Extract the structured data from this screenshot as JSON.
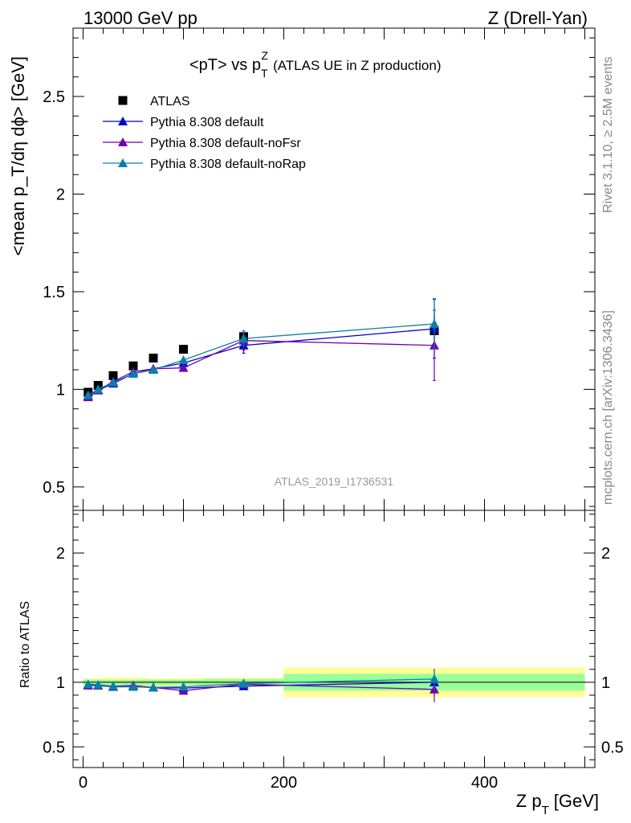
{
  "header": {
    "left": "13000 GeV pp",
    "right": "Z (Drell-Yan)"
  },
  "side_labels": {
    "rivet": "Rivet 3.1.10, ≥ 2.5M events",
    "arxiv": "mcplots.cern.ch [arXiv:1306.3436]"
  },
  "chart_data": [
    {
      "type": "line",
      "title": "<pT> vs p_T^Z (ATLAS UE in Z production)",
      "title_main": "<pT> vs p",
      "title_sup": "Z",
      "title_sub": "T",
      "title_suffix": "(ATLAS UE in Z production)",
      "ylabel": "<mean p_T/dη dϕ> [GeV]",
      "watermark": "ATLAS_2019_I1736531",
      "xlim": [
        -10,
        510
      ],
      "ylim": [
        0.38,
        2.85
      ],
      "yticks": [
        0.5,
        1,
        1.5,
        2,
        2.5
      ],
      "ytick_labels": [
        "0.5",
        "1",
        "1.5",
        "2",
        "2.5"
      ],
      "legend_position": "top-left",
      "series": [
        {
          "name": "ATLAS",
          "kind": "data",
          "color": "#000000",
          "x": [
            5,
            15,
            30,
            50,
            70,
            100,
            160,
            350
          ],
          "y": [
            0.985,
            1.02,
            1.07,
            1.12,
            1.16,
            1.205,
            1.27,
            1.3
          ],
          "err": [
            0.01,
            0.01,
            0.01,
            0.012,
            0.015,
            0.015,
            0.03,
            0.08
          ]
        },
        {
          "name": "Pythia 8.308 default",
          "kind": "mc",
          "color": "#0000cc",
          "x": [
            5,
            15,
            30,
            50,
            70,
            100,
            160,
            350
          ],
          "y": [
            0.965,
            0.995,
            1.03,
            1.08,
            1.105,
            1.135,
            1.225,
            1.31
          ],
          "err": [
            0.01,
            0.01,
            0.01,
            0.015,
            0.02,
            0.02,
            0.04,
            0.15
          ]
        },
        {
          "name": "Pythia 8.308 default-noFsr",
          "kind": "mc",
          "color": "#7000b0",
          "x": [
            5,
            15,
            30,
            50,
            70,
            100,
            160,
            350
          ],
          "y": [
            0.96,
            0.995,
            1.04,
            1.09,
            1.105,
            1.11,
            1.25,
            1.225
          ],
          "err": [
            0.01,
            0.01,
            0.01,
            0.015,
            0.02,
            0.02,
            0.05,
            0.18
          ]
        },
        {
          "name": "Pythia 8.308 default-noRap",
          "kind": "mc",
          "color": "#0a80a8",
          "x": [
            5,
            15,
            30,
            50,
            70,
            100,
            160,
            350
          ],
          "y": [
            0.97,
            1.0,
            1.035,
            1.08,
            1.1,
            1.15,
            1.26,
            1.335
          ],
          "err": [
            0.01,
            0.01,
            0.01,
            0.015,
            0.02,
            0.02,
            0.04,
            0.13
          ]
        }
      ]
    },
    {
      "type": "line",
      "ylabel": "Ratio to ATLAS",
      "xlabel": "Z p_T [GeV]",
      "xlabel_main": "Z p",
      "xlabel_sub": "T",
      "xlabel_unit": "[GeV]",
      "xlim": [
        -10,
        510
      ],
      "ylim": [
        0.34,
        2.33
      ],
      "yticks": [
        0.5,
        1,
        2
      ],
      "ytick_labels": [
        "0.5",
        "1",
        "2"
      ],
      "xticks": [
        0,
        200,
        400
      ],
      "xtick_labels": [
        "0",
        "200",
        "400"
      ],
      "bands": [
        {
          "x0": 0,
          "x1": 20,
          "stat": 0.02,
          "total": 0.03
        },
        {
          "x0": 20,
          "x1": 60,
          "stat": 0.02,
          "total": 0.04
        },
        {
          "x0": 60,
          "x1": 120,
          "stat": 0.02,
          "total": 0.03
        },
        {
          "x0": 120,
          "x1": 200,
          "stat": 0.025,
          "total": 0.035
        },
        {
          "x0": 200,
          "x1": 500,
          "stat": 0.065,
          "total": 0.115
        }
      ],
      "band_colors": {
        "stat": "#99ff99",
        "total": "#ffff99"
      },
      "series": [
        {
          "name": "Pythia 8.308 default",
          "color": "#0000cc",
          "x": [
            5,
            15,
            30,
            50,
            70,
            100,
            160,
            350
          ],
          "y": [
            0.98,
            0.975,
            0.965,
            0.965,
            0.96,
            0.955,
            0.97,
            1.0
          ],
          "err": [
            0.01,
            0.01,
            0.01,
            0.015,
            0.015,
            0.015,
            0.03,
            0.1
          ]
        },
        {
          "name": "Pythia 8.308 default-noFsr",
          "color": "#7000b0",
          "x": [
            5,
            15,
            30,
            50,
            70,
            100,
            160,
            350
          ],
          "y": [
            0.975,
            0.975,
            0.97,
            0.975,
            0.96,
            0.935,
            0.985,
            0.945
          ],
          "err": [
            0.01,
            0.01,
            0.01,
            0.015,
            0.015,
            0.015,
            0.04,
            0.1
          ]
        },
        {
          "name": "Pythia 8.308 default-noRap",
          "color": "#0a80a8",
          "x": [
            5,
            15,
            30,
            50,
            70,
            100,
            160,
            350
          ],
          "y": [
            0.985,
            0.98,
            0.97,
            0.965,
            0.96,
            0.965,
            0.99,
            1.025
          ],
          "err": [
            0.01,
            0.01,
            0.01,
            0.015,
            0.015,
            0.015,
            0.03,
            0.08
          ]
        }
      ]
    }
  ]
}
